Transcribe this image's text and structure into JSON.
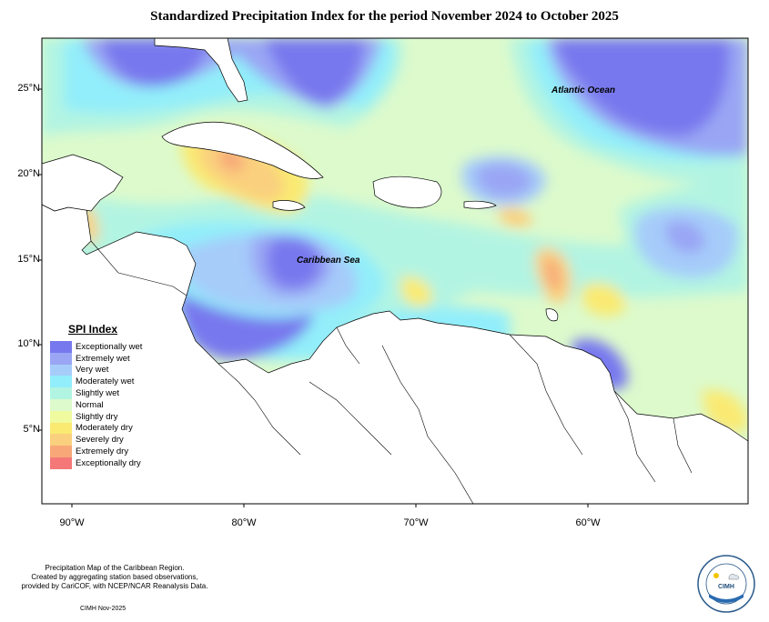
{
  "title": "Standardized Precipitation Index for the period November 2024 to October 2025",
  "legend": {
    "title": "SPI Index",
    "items": [
      {
        "label": "Exceptionally wet",
        "color": "#7878ee"
      },
      {
        "label": "Extremely wet",
        "color": "#9aa6f4"
      },
      {
        "label": "Very wet",
        "color": "#a6ccfa"
      },
      {
        "label": "Moderately wet",
        "color": "#92eefa"
      },
      {
        "label": "Slightly wet",
        "color": "#b2f4e2"
      },
      {
        "label": "Normal",
        "color": "#dcfacc"
      },
      {
        "label": "Slightly dry",
        "color": "#f0fa9e"
      },
      {
        "label": "Moderately dry",
        "color": "#faea72"
      },
      {
        "label": "Severely dry",
        "color": "#fad07e"
      },
      {
        "label": "Extremely dry",
        "color": "#f8a878"
      },
      {
        "label": "Exceptionally dry",
        "color": "#f47878"
      }
    ]
  },
  "axes": {
    "y_ticks": [
      "25°N",
      "20°N",
      "15°N",
      "10°N",
      "5°N"
    ],
    "x_ticks": [
      "90°W",
      "80°W",
      "70°W",
      "60°W"
    ]
  },
  "places": {
    "atlantic": "Atlantic Ocean",
    "caribbean": "Caribbean Sea"
  },
  "footer": {
    "line1": "Precipitation Map of the Caribbean Region.",
    "line2": "Created by aggregating station based observations,",
    "line3": "provided by CariCOF, with NCEP/NCAR Reanalysis Data.",
    "credit": "CIMH Nov-2025"
  },
  "logo": {
    "text": "CIMH"
  }
}
